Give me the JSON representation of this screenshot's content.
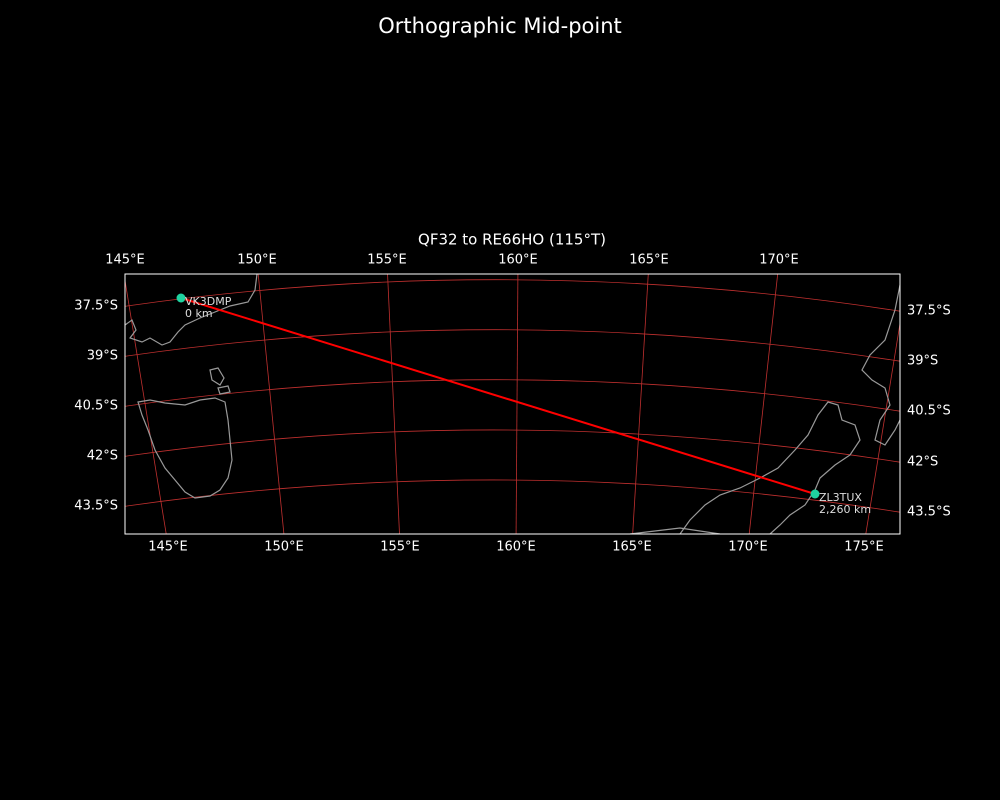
{
  "title": "Orthographic Mid-point",
  "subtitle": "QF32 to RE66HO (115°T)",
  "top_labels": [
    "145°E",
    "150°E",
    "155°E",
    "160°E",
    "165°E",
    "170°E"
  ],
  "bottom_labels": [
    "145°E",
    "150°E",
    "155°E",
    "160°E",
    "165°E",
    "170°E",
    "175°E"
  ],
  "left_labels": [
    "37.5°S",
    "39°S",
    "40.5°S",
    "42°S",
    "43.5°S"
  ],
  "right_labels": [
    "37.5°S",
    "39°S",
    "40.5°S",
    "42°S",
    "43.5°S"
  ],
  "stations": [
    {
      "call": "VK3DMP",
      "distance": "0 km"
    },
    {
      "call": "ZL3TUX",
      "distance": "2,260 km"
    }
  ]
}
